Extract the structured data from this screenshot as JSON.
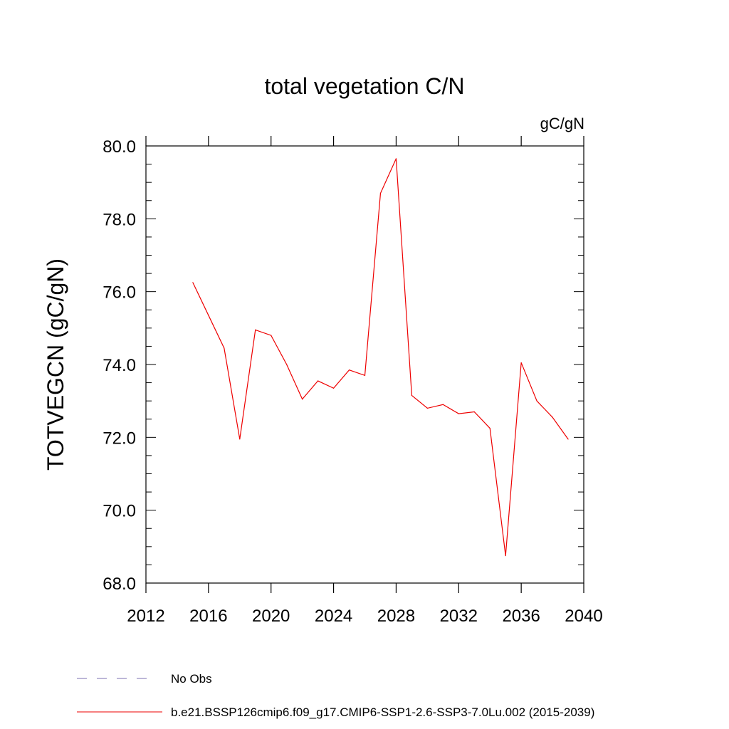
{
  "chart_data": {
    "type": "line",
    "title": "total vegetation C/N",
    "units_label": "gC/gN",
    "xlabel": "",
    "ylabel": "TOTVEGCN  (gC/gN)",
    "xlim": [
      2012,
      2040
    ],
    "ylim": [
      68.0,
      80.0
    ],
    "x_ticks": [
      2012,
      2016,
      2020,
      2024,
      2028,
      2032,
      2036,
      2040
    ],
    "x_tick_labels": [
      "2012",
      "2016",
      "2020",
      "2024",
      "2028",
      "2032",
      "2036",
      "2040"
    ],
    "y_ticks": [
      68.0,
      70.0,
      72.0,
      74.0,
      76.0,
      78.0,
      80.0
    ],
    "y_tick_labels": [
      "68.0",
      "70.0",
      "72.0",
      "74.0",
      "76.0",
      "78.0",
      "80.0"
    ],
    "grid": false,
    "series": [
      {
        "name": "b.e21.BSSP126cmip6.f09_g17.CMIP6-SSP1-2.6-SSP3-7.0Lu.002 (2015-2039)",
        "color": "#ee0000",
        "x": [
          2015,
          2016,
          2017,
          2018,
          2019,
          2020,
          2021,
          2022,
          2023,
          2024,
          2025,
          2026,
          2027,
          2028,
          2029,
          2030,
          2031,
          2032,
          2033,
          2034,
          2035,
          2036,
          2037,
          2038,
          2039
        ],
        "values": [
          76.25,
          75.35,
          74.45,
          71.95,
          74.95,
          74.8,
          74.0,
          73.05,
          73.55,
          73.35,
          73.85,
          73.7,
          78.7,
          79.65,
          73.15,
          72.8,
          72.9,
          72.65,
          72.7,
          72.25,
          68.75,
          74.05,
          73.0,
          72.55,
          71.95
        ]
      }
    ],
    "legend": {
      "placement": "bottom-left",
      "entries": [
        {
          "label": "No Obs",
          "style": "dashed",
          "color": "#7b6fb2"
        },
        {
          "label": "b.e21.BSSP126cmip6.f09_g17.CMIP6-SSP1-2.6-SSP3-7.0Lu.002 (2015-2039)",
          "style": "solid",
          "color": "#ee0000"
        }
      ]
    }
  }
}
